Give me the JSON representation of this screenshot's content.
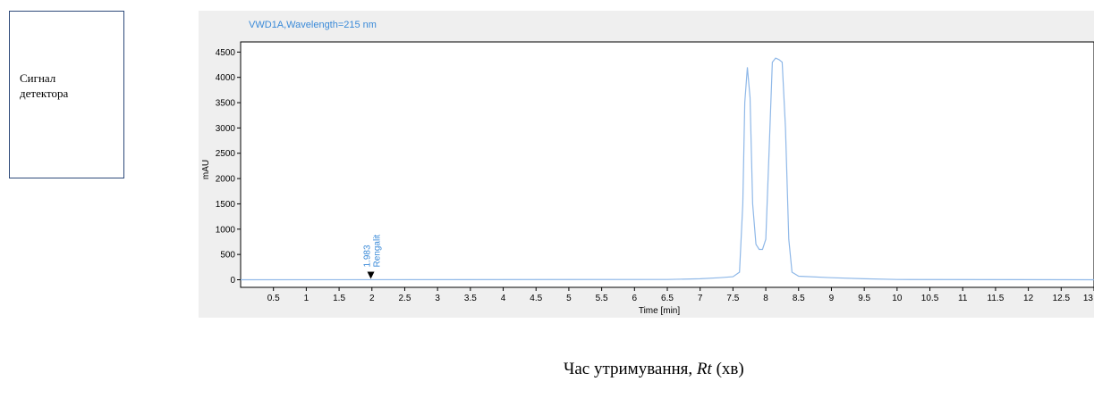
{
  "side_box": {
    "label_line1": "Сигнал",
    "label_line2": "детектора"
  },
  "caption": {
    "prefix": "Час утримування, ",
    "symbol": "Rt",
    "suffix": " (хв)"
  },
  "colors": {
    "trace": "#8fb8e8",
    "title_text": "#3a8ad8",
    "axis": "#000000",
    "panel_bg": "#efefef"
  },
  "chart_data": {
    "type": "line",
    "title": "VWD1A,Wavelength=215 nm",
    "xlabel": "Time [min]",
    "ylabel": "mAU",
    "xlim": [
      0,
      13
    ],
    "ylim": [
      -150,
      4700
    ],
    "xticks": [
      "0.5",
      "1",
      "1.5",
      "2",
      "2.5",
      "3",
      "3.5",
      "4",
      "4.5",
      "5",
      "5.5",
      "6",
      "6.5",
      "7",
      "7.5",
      "8",
      "8.5",
      "9",
      "9.5",
      "10",
      "10.5",
      "11",
      "11.5",
      "12",
      "12.5",
      "13"
    ],
    "yticks": [
      "0",
      "500",
      "1000",
      "1500",
      "2000",
      "2500",
      "3000",
      "3500",
      "4000",
      "4500"
    ],
    "annotations": [
      {
        "x": 1.983,
        "label_line1": "1.983",
        "label_line2": "Rengalit"
      }
    ],
    "series": [
      {
        "points": [
          [
            0.0,
            0
          ],
          [
            6.5,
            5
          ],
          [
            7.0,
            20
          ],
          [
            7.3,
            40
          ],
          [
            7.5,
            60
          ],
          [
            7.6,
            150
          ],
          [
            7.65,
            1500
          ],
          [
            7.68,
            3500
          ],
          [
            7.72,
            4200
          ],
          [
            7.76,
            3600
          ],
          [
            7.8,
            1500
          ],
          [
            7.85,
            700
          ],
          [
            7.9,
            600
          ],
          [
            7.95,
            600
          ],
          [
            8.0,
            800
          ],
          [
            8.05,
            2500
          ],
          [
            8.1,
            4300
          ],
          [
            8.15,
            4380
          ],
          [
            8.2,
            4350
          ],
          [
            8.25,
            4300
          ],
          [
            8.3,
            3000
          ],
          [
            8.35,
            800
          ],
          [
            8.4,
            150
          ],
          [
            8.5,
            70
          ],
          [
            9.0,
            40
          ],
          [
            9.5,
            20
          ],
          [
            10.0,
            5
          ],
          [
            13.0,
            0
          ]
        ]
      }
    ]
  }
}
